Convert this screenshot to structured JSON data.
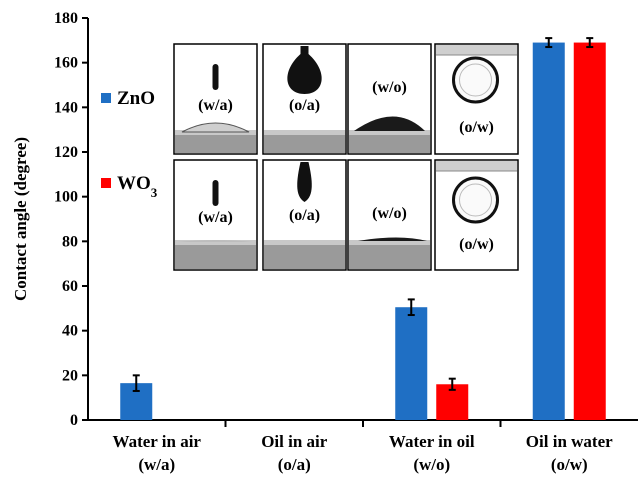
{
  "chart_data": {
    "type": "bar",
    "ylabel": "Contact angle (degree)",
    "ylim": [
      0,
      180
    ],
    "yticks": [
      0,
      20,
      40,
      60,
      80,
      100,
      120,
      140,
      160,
      180
    ],
    "categories": [
      {
        "line1": "Water in air",
        "line2": "(w/a)"
      },
      {
        "line1": "Oil in air",
        "line2": "(o/a)"
      },
      {
        "line1": "Water in oil",
        "line2": "(w/o)"
      },
      {
        "line1": "Oil in water",
        "line2": "(o/w)"
      }
    ],
    "series": [
      {
        "name": "ZnO",
        "name_main": "ZnO",
        "name_sub": "",
        "color": "#1f6fc4",
        "values": [
          16.5,
          null,
          50.5,
          169
        ],
        "errors": [
          3.5,
          null,
          3.5,
          2
        ]
      },
      {
        "name": "WO3",
        "name_main": "WO",
        "name_sub": "3",
        "color": "#ff0000",
        "values": [
          null,
          null,
          16,
          169
        ],
        "errors": [
          null,
          null,
          2.5,
          2
        ]
      }
    ],
    "legend": "left",
    "grid": false,
    "insets": {
      "row_zno": [
        "(w/a)",
        "(o/a)",
        "(w/o)",
        "(o/w)"
      ],
      "row_wo3": [
        "(w/a)",
        "(o/a)",
        "(w/o)",
        "(o/w)"
      ]
    }
  }
}
